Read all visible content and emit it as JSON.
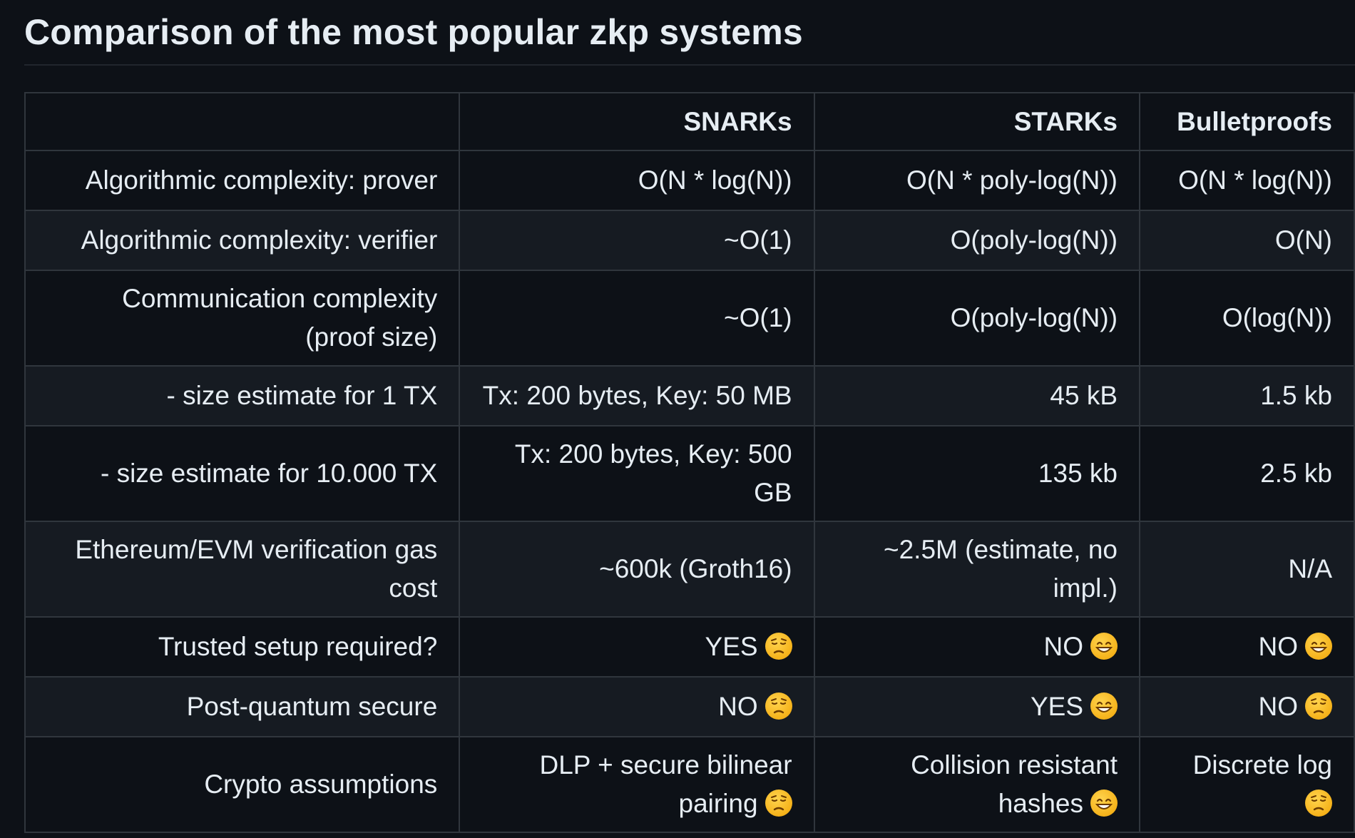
{
  "title": "Comparison of the most popular zkp systems",
  "table": {
    "headers": [
      "",
      "SNARKs",
      "STARKs",
      "Bulletproofs"
    ],
    "rows": [
      {
        "label": "Algorithmic complexity: prover",
        "cells": [
          {
            "text": "O(N * log(N))"
          },
          {
            "text": "O(N * poly-log(N))"
          },
          {
            "text": "O(N * log(N))"
          }
        ]
      },
      {
        "label": "Algorithmic complexity: verifier",
        "cells": [
          {
            "text": "~O(1)"
          },
          {
            "text": "O(poly-log(N))"
          },
          {
            "text": "O(N)"
          }
        ]
      },
      {
        "label": "Communication complexity (proof size)",
        "cells": [
          {
            "text": "~O(1)"
          },
          {
            "text": "O(poly-log(N))"
          },
          {
            "text": "O(log(N))"
          }
        ]
      },
      {
        "label": "- size estimate for 1 TX",
        "cells": [
          {
            "text": "Tx: 200 bytes, Key: 50 MB"
          },
          {
            "text": "45 kB"
          },
          {
            "text": "1.5 kb"
          }
        ]
      },
      {
        "label": "- size estimate for 10.000 TX",
        "cells": [
          {
            "text": "Tx: 200 bytes, Key: 500 GB"
          },
          {
            "text": "135 kb"
          },
          {
            "text": "2.5 kb"
          }
        ]
      },
      {
        "label": "Ethereum/EVM verification gas cost",
        "cells": [
          {
            "text": "~600k (Groth16)"
          },
          {
            "text": "~2.5M (estimate, no impl.)"
          },
          {
            "text": "N/A"
          }
        ]
      },
      {
        "label": "Trusted setup required?",
        "cells": [
          {
            "text": "YES",
            "emoji": "pensive-face-icon"
          },
          {
            "text": "NO",
            "emoji": "grinning-face-icon"
          },
          {
            "text": "NO",
            "emoji": "grinning-face-icon"
          }
        ]
      },
      {
        "label": "Post-quantum secure",
        "cells": [
          {
            "text": "NO",
            "emoji": "pensive-face-icon"
          },
          {
            "text": "YES",
            "emoji": "grinning-face-icon"
          },
          {
            "text": "NO",
            "emoji": "pensive-face-icon"
          }
        ]
      },
      {
        "label": "Crypto assumptions",
        "cells": [
          {
            "text": "DLP + secure bilinear pairing",
            "emoji": "pensive-face-icon"
          },
          {
            "text": "Collision resistant hashes",
            "emoji": "grinning-face-icon"
          },
          {
            "text": "Discrete log",
            "emoji": "pensive-face-icon"
          }
        ]
      }
    ]
  },
  "colors": {
    "background": "#0d1117",
    "row_alt": "#161b22",
    "border": "#30363d",
    "text": "#e6edf3"
  }
}
